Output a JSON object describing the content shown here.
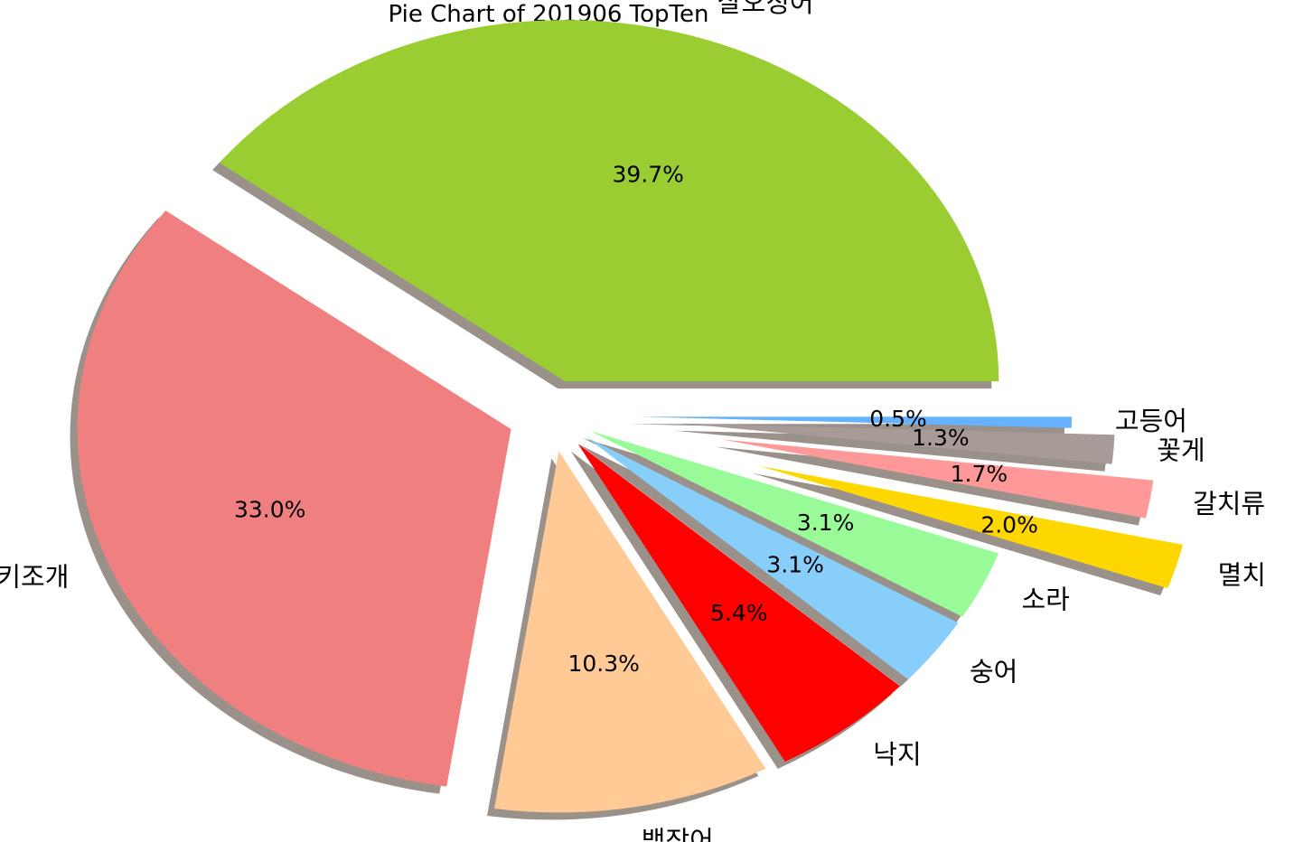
{
  "chart_data": {
    "type": "pie",
    "title": "Pie Chart of 201906 TopTen",
    "shadow": true,
    "start_angle_deg": 0,
    "direction": "counterclockwise",
    "slices": [
      {
        "label": "살오징어",
        "value": 39.7,
        "pct_label": "39.7%",
        "color": "#9ACD32",
        "explode": 0.1
      },
      {
        "label": "키조개",
        "value": 33.0,
        "pct_label": "33.0%",
        "color": "#F08080",
        "explode": 0.1
      },
      {
        "label": "뱀장어",
        "value": 10.3,
        "pct_label": "10.3%",
        "color": "#FFCA96",
        "explode": 0.1
      },
      {
        "label": "낙지",
        "value": 5.4,
        "pct_label": "5.4%",
        "color": "#FF0000",
        "explode": 0.1
      },
      {
        "label": "숭어",
        "value": 3.1,
        "pct_label": "3.1%",
        "color": "#87CEFA",
        "explode": 0.1
      },
      {
        "label": "소라",
        "value": 3.1,
        "pct_label": "3.1%",
        "color": "#98FB98",
        "explode": 0.1
      },
      {
        "label": "멸치",
        "value": 2.0,
        "pct_label": "2.0%",
        "color": "#FFD700",
        "explode": 0.5
      },
      {
        "label": "갈치류",
        "value": 1.7,
        "pct_label": "1.7%",
        "color": "#FF9999",
        "explode": 0.4
      },
      {
        "label": "꽃게",
        "value": 1.3,
        "pct_label": "1.3%",
        "color": "#A89A97",
        "explode": 0.3
      },
      {
        "label": "고등어",
        "value": 0.5,
        "pct_label": "0.5%",
        "color": "#66B2FF",
        "explode": 0.2
      }
    ]
  }
}
